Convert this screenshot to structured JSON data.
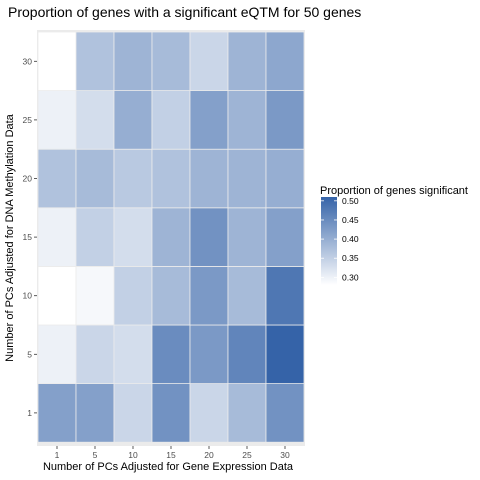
{
  "chart_data": {
    "type": "heatmap",
    "title": "Proportion of genes with a significant eQTM for 50 genes",
    "xlabel": "Number of PCs Adjusted for Gene Expression Data",
    "ylabel": "Number of PCs Adjusted for DNA Methylation Data",
    "x_categories": [
      "1",
      "5",
      "10",
      "15",
      "20",
      "25",
      "30"
    ],
    "y_categories": [
      "1",
      "5",
      "10",
      "15",
      "20",
      "25",
      "30"
    ],
    "values": [
      [
        0.42,
        0.42,
        0.34,
        0.44,
        0.34,
        0.38,
        0.44
      ],
      [
        0.3,
        0.34,
        0.33,
        0.45,
        0.43,
        0.46,
        0.51
      ],
      [
        0.28,
        0.29,
        0.35,
        0.38,
        0.43,
        0.38,
        0.48
      ],
      [
        0.3,
        0.35,
        0.33,
        0.39,
        0.44,
        0.39,
        0.42
      ],
      [
        0.37,
        0.38,
        0.36,
        0.37,
        0.39,
        0.39,
        0.4
      ],
      [
        0.3,
        0.33,
        0.4,
        0.35,
        0.42,
        0.39,
        0.43
      ],
      [
        0.28,
        0.37,
        0.39,
        0.38,
        0.34,
        0.39,
        0.41
      ]
    ],
    "legend": {
      "title": "Proportion of genes significant",
      "ticks": [
        "0.50",
        "0.45",
        "0.40",
        "0.35",
        "0.30"
      ],
      "tick_values": [
        0.5,
        0.45,
        0.4,
        0.35,
        0.3
      ],
      "min": 0.28,
      "max": 0.51,
      "placement": "right"
    },
    "colors": {
      "low": "#ffffff",
      "high": "#3563a8",
      "panel_background": "#ebebeb"
    },
    "grid": false
  }
}
